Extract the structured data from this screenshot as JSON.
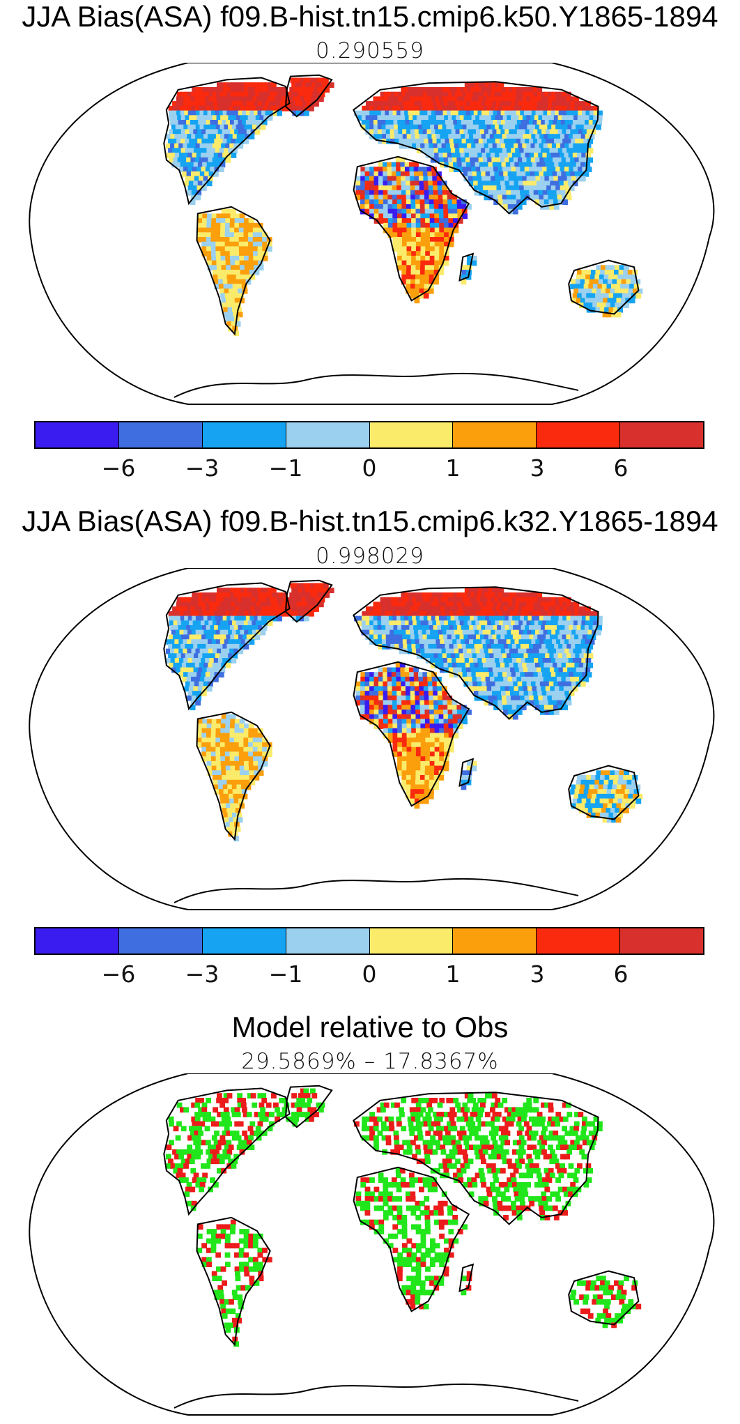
{
  "panels": [
    {
      "title": "JJA Bias(ASA) f09.B-hist.tn15.cmip6.k50.Y1865-1894",
      "subtitle": "0.290559"
    },
    {
      "title": "JJA Bias(ASA) f09.B-hist.tn15.cmip6.k32.Y1865-1894",
      "subtitle": "0.998029"
    },
    {
      "title": "Model relative to Obs",
      "subtitle": "29.5869% – 17.8367%"
    }
  ],
  "colorbar": {
    "colors": [
      "#3a1cf0",
      "#3f6ee0",
      "#16a4f2",
      "#9bd0ef",
      "#fbeb6a",
      "#fb9f0d",
      "#fa2a0e",
      "#d8302c"
    ],
    "tick_labels": [
      "−6",
      "−3",
      "−1",
      "0",
      "1",
      "3",
      "6"
    ]
  },
  "comparison_colors": {
    "better": "#22e61c",
    "worse": "#ec1c1c"
  }
}
